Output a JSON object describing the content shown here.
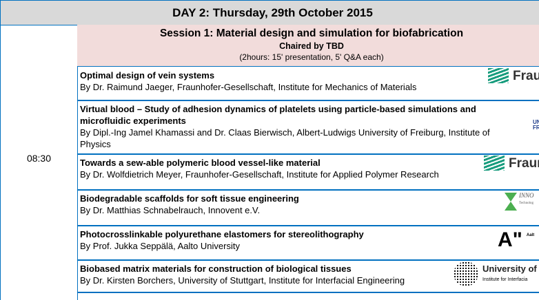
{
  "day_header": "DAY 2: Thursday, 29th October 2015",
  "time": "08:30",
  "session": {
    "title": "Session 1: Material design and simulation for biofabrication",
    "chair": "Chaired by TBD",
    "duration": "(2hours: 15' presentation, 5' Q&A each)"
  },
  "talks": [
    {
      "title": "Optimal design of vein systems",
      "speaker": "By Dr. Raimund Jaeger, Fraunhofer-Gesellschaft, Institute for Mechanics of Materials",
      "logo": "Fraun"
    },
    {
      "title": "Virtual blood – Study of adhesion dynamics of platelets using particle-based simulations and microfluidic experiments",
      "speaker": "By Dipl.-Ing Jamel Khamassi and Dr. Claas Bierwisch, Albert-Ludwigs University of Freiburg, Institute of Physics",
      "logo": "UNI FR"
    },
    {
      "title": "Towards a sew-able polymeric blood vessel-like material",
      "speaker": "By Dr. Wolfdietrich Meyer, Fraunhofer-Gesellschaft, Institute for Applied Polymer Research",
      "logo": "Fraun"
    },
    {
      "title": "Biodegradable scaffolds for soft tissue engineering",
      "speaker": "By Dr. Matthias Schnabelrauch, Innovent e.V.",
      "logo": "INNO",
      "logo_sub": "Technolog"
    },
    {
      "title": "Photocrosslinkable polyurethane elastomers for stereolithography",
      "speaker": "By Prof. Jukka Seppälä, Aalto University",
      "logo": "A\"",
      "logo_sub": "Aalt"
    },
    {
      "title": "Biobased matrix materials for construction of biological tissues",
      "speaker": "By Dr. Kirsten Borchers, University of Stuttgart, Institute for Interfacial Engineering",
      "logo": "University of S",
      "logo_sub": "Institute for Interfacia"
    }
  ]
}
